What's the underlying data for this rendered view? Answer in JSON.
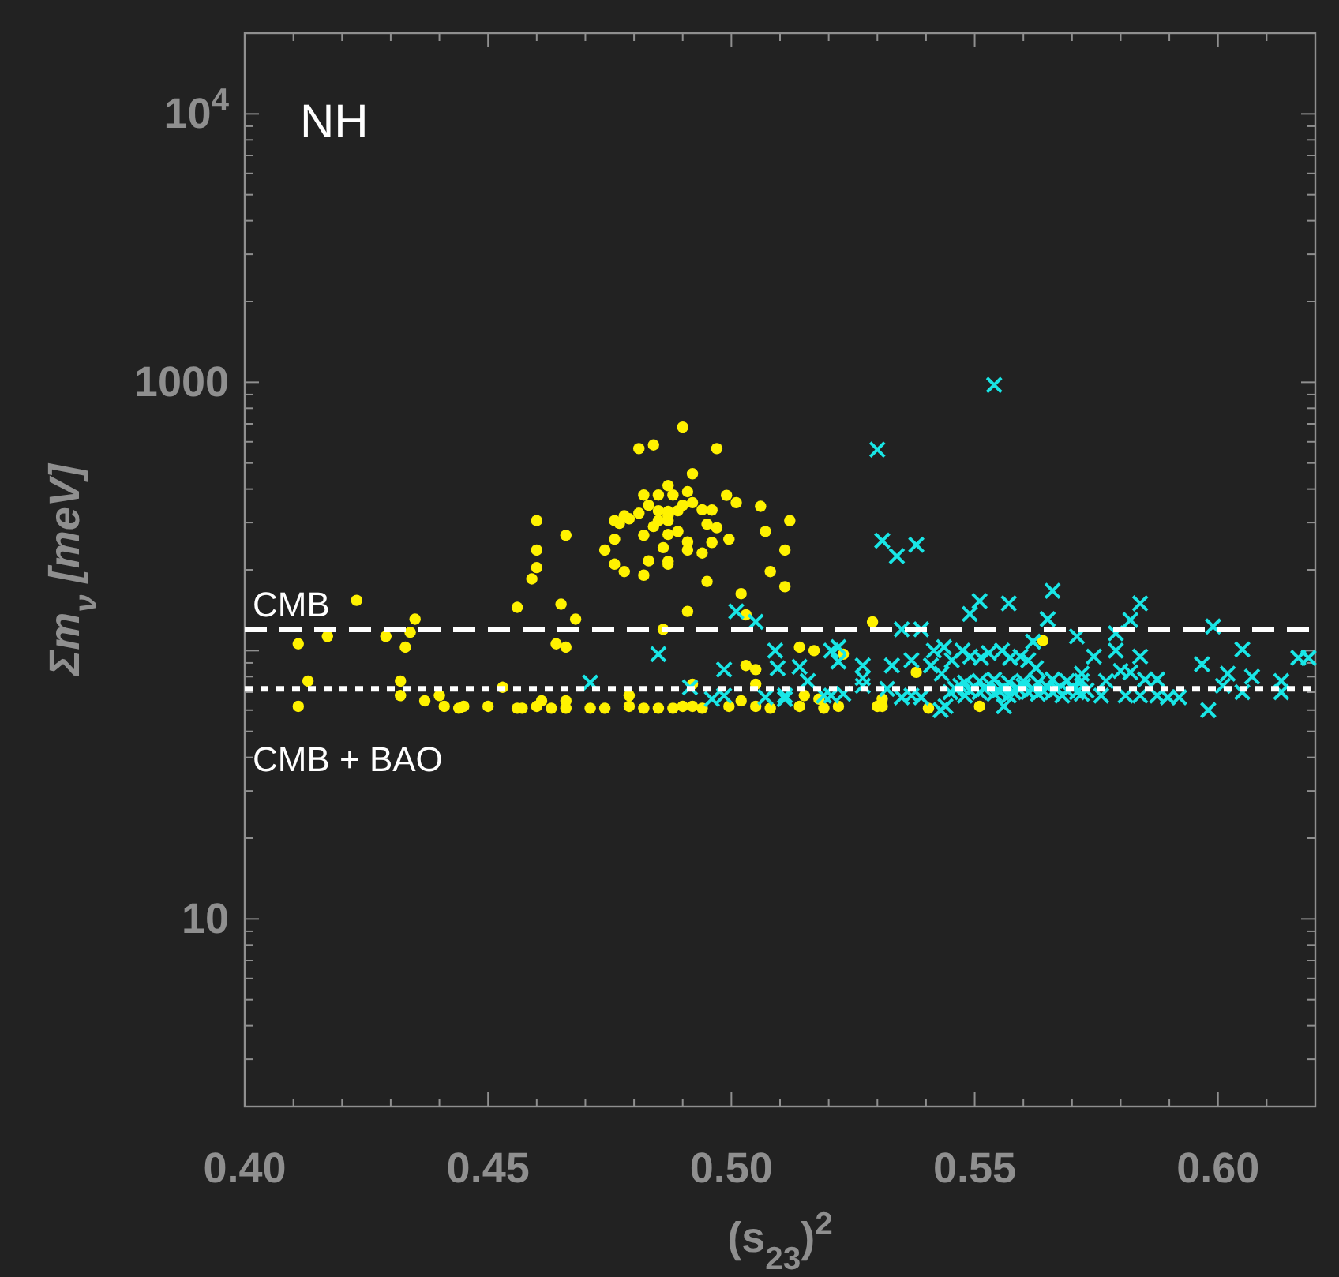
{
  "chart_data": {
    "type": "scatter",
    "xlabel": "(s$_{23}$)$^{2}$",
    "ylabel": "Σm$_{ν}$ [meV]",
    "annotations": [
      "NH"
    ],
    "log": "y",
    "grid": false,
    "xlim": [
      0.4,
      0.62
    ],
    "ylim": [
      2,
      20000
    ],
    "xticks": [
      {
        "value": 0.4,
        "label": "0.40"
      },
      {
        "value": 0.41,
        "label": null
      },
      {
        "value": 0.42,
        "label": null
      },
      {
        "value": 0.43,
        "label": null
      },
      {
        "value": 0.44,
        "label": null
      },
      0.45,
      {
        "value": 0.46,
        "label": null
      },
      {
        "value": 0.47,
        "label": null
      },
      {
        "value": 0.48,
        "label": null
      },
      {
        "value": 0.49,
        "label": null
      },
      {
        "value": 0.5,
        "label": "0.50"
      },
      {
        "value": 0.51,
        "label": null
      },
      {
        "value": 0.52,
        "label": null
      },
      {
        "value": 0.53,
        "label": null
      },
      {
        "value": 0.54,
        "label": null
      },
      0.55,
      {
        "value": 0.56,
        "label": null
      },
      {
        "value": 0.57,
        "label": null
      },
      {
        "value": 0.58,
        "label": null
      },
      {
        "value": 0.59,
        "label": null
      },
      {
        "value": 0.6,
        "label": "0.60"
      },
      {
        "value": 0.61,
        "label": null
      }
    ],
    "yticks": [
      {
        "value": 3,
        "label": null
      },
      {
        "value": 4,
        "label": null
      },
      {
        "value": 5,
        "label": null
      },
      {
        "value": 6,
        "label": null
      },
      {
        "value": 7,
        "label": null
      },
      {
        "value": 8,
        "label": null
      },
      {
        "value": 9,
        "label": null
      },
      10,
      {
        "value": 20,
        "label": null
      },
      {
        "value": 30,
        "label": null
      },
      {
        "value": 40,
        "label": null
      },
      {
        "value": 50,
        "label": null
      },
      {
        "value": 60,
        "label": null
      },
      {
        "value": 70,
        "label": null
      },
      {
        "value": 80,
        "label": null
      },
      {
        "value": 90,
        "label": null
      },
      {
        "value": 100,
        "label": null
      },
      {
        "value": 200,
        "label": null
      },
      {
        "value": 300,
        "label": null
      },
      {
        "value": 400,
        "label": null
      },
      {
        "value": 500,
        "label": null
      },
      {
        "value": 600,
        "label": null
      },
      {
        "value": 700,
        "label": null
      },
      {
        "value": 800,
        "label": null
      },
      {
        "value": 900,
        "label": null
      },
      1000,
      {
        "value": 2000,
        "label": null
      },
      {
        "value": 3000,
        "label": null
      },
      {
        "value": 4000,
        "label": null
      },
      {
        "value": 5000,
        "label": null
      },
      {
        "value": 6000,
        "label": null
      },
      {
        "value": 7000,
        "label": null
      },
      {
        "value": 8000,
        "label": null
      },
      {
        "value": 9000,
        "label": null
      },
      {
        "value": 10000,
        "label": "10$^{4}$"
      }
    ],
    "ref_lines": [
      {
        "axis": "y",
        "value": 120,
        "label": "CMB",
        "color": "#ffffff",
        "line_style": "dashed"
      },
      {
        "axis": "y",
        "value": 72,
        "label": "CMB + BAO",
        "color": "#ffffff",
        "line_style": "dotted"
      }
    ],
    "series": [
      {
        "color": "#fff200",
        "marker": "circle",
        "x": [
          0.423,
          0.411,
          0.411,
          0.413,
          0.417,
          0.429,
          0.433,
          0.434,
          0.435,
          0.432,
          0.432,
          0.437,
          0.44,
          0.441,
          0.444,
          0.445,
          0.45,
          0.453,
          0.456,
          0.457,
          0.46,
          0.461,
          0.463,
          0.466,
          0.466,
          0.464,
          0.466,
          0.465,
          0.468,
          0.456,
          0.459,
          0.46,
          0.46,
          0.46,
          0.466,
          0.471,
          0.474,
          0.479,
          0.479,
          0.482,
          0.485,
          0.488,
          0.49,
          0.492,
          0.494,
          0.486,
          0.491,
          0.492,
          0.495,
          0.502,
          0.503,
          0.4995,
          0.502,
          0.505,
          0.508,
          0.505,
          0.503,
          0.505,
          0.514,
          0.517,
          0.515,
          0.514,
          0.518,
          0.519,
          0.522,
          0.49,
          0.481,
          0.484,
          0.497,
          0.492,
          0.487,
          0.482,
          0.485,
          0.488,
          0.491,
          0.499,
          0.501,
          0.506,
          0.512,
          0.507,
          0.511,
          0.508,
          0.511,
          0.494,
          0.496,
          0.4995,
          0.497,
          0.495,
          0.496,
          0.494,
          0.476,
          0.476,
          0.474,
          0.476,
          0.478,
          0.482,
          0.483,
          0.487,
          0.487,
          0.486,
          0.482,
          0.484,
          0.487,
          0.489,
          0.491,
          0.491,
          0.478,
          0.481,
          0.483,
          0.485,
          0.487,
          0.489,
          0.49,
          0.492,
          0.477,
          0.479,
          0.487,
          0.485,
          0.487,
          0.523,
          0.529,
          0.53,
          0.531,
          0.531,
          0.538,
          0.5405,
          0.551,
          0.564
        ],
        "values": [
          154,
          106,
          62,
          77,
          113,
          113,
          103,
          117,
          131,
          77,
          68,
          65,
          68,
          62,
          61,
          62,
          62,
          73,
          61,
          61,
          62,
          65,
          61,
          61,
          65,
          106,
          103,
          149,
          131,
          145,
          185,
          204,
          237,
          305,
          269,
          61,
          61,
          68,
          62,
          61,
          61,
          61,
          62,
          62,
          61,
          120,
          140,
          75,
          181,
          163,
          136,
          62,
          65,
          62,
          61,
          75,
          88,
          85,
          103,
          100,
          68,
          62,
          66,
          61,
          62,
          681,
          566,
          584,
          566,
          456,
          412,
          380,
          380,
          380,
          391,
          379,
          356,
          345,
          305,
          278,
          237,
          197,
          173,
          231,
          253,
          260,
          287,
          296,
          334,
          335,
          305,
          260,
          237,
          210,
          197,
          191,
          216,
          210,
          215,
          242,
          269,
          290,
          271,
          278,
          254,
          237,
          318,
          325,
          348,
          332,
          318,
          332,
          348,
          356,
          298,
          310,
          330,
          305,
          305,
          97,
          128,
          62,
          62,
          66,
          83,
          61,
          62,
          109
        ]
      },
      {
        "color": "#19e6e6",
        "marker": "cross",
        "x": [
          0.501,
          0.505,
          0.485,
          0.471,
          0.4915,
          0.496,
          0.4985,
          0.4985,
          0.509,
          0.5095,
          0.514,
          0.5157,
          0.507,
          0.511,
          0.511,
          0.5205,
          0.5205,
          0.554,
          0.53,
          0.531,
          0.534,
          0.538,
          0.551,
          0.549,
          0.557,
          0.566,
          0.565,
          0.584,
          0.582,
          0.579,
          0.571,
          0.599,
          0.535,
          0.539,
          0.522,
          0.522,
          0.527,
          0.527,
          0.527,
          0.533,
          0.537,
          0.532,
          0.535,
          0.539,
          0.5416,
          0.5437,
          0.541,
          0.5432,
          0.5453,
          0.5475,
          0.5491,
          0.5513,
          0.5529,
          0.5556,
          0.5573,
          0.5594,
          0.561,
          0.5626,
          0.545,
          0.546,
          0.547,
          0.548,
          0.549,
          0.55,
          0.551,
          0.552,
          0.553,
          0.554,
          0.555,
          0.556,
          0.557,
          0.558,
          0.559,
          0.56,
          0.561,
          0.562,
          0.563,
          0.564,
          0.565,
          0.566,
          0.567,
          0.568,
          0.569,
          0.57,
          0.571,
          0.572,
          0.573,
          0.548,
          0.551,
          0.554,
          0.557,
          0.56,
          0.563,
          0.566,
          0.569,
          0.543,
          0.556,
          0.562,
          0.5745,
          0.579,
          0.584,
          0.58,
          0.582,
          0.572,
          0.572,
          0.577,
          0.576,
          0.581,
          0.584,
          0.585,
          0.5875,
          0.5875,
          0.5897,
          0.592,
          0.5967,
          0.602,
          0.601,
          0.598,
          0.605,
          0.607,
          0.605,
          0.613,
          0.613,
          0.6165,
          0.6186,
          0.519,
          0.523,
          0.537,
          0.544
        ],
        "values": [
          140,
          128,
          97,
          76,
          73,
          66,
          85,
          68,
          100,
          86,
          87,
          77,
          67,
          68,
          66,
          100,
          68,
          977,
          561,
          257,
          225,
          248,
          153,
          137,
          150,
          167,
          131,
          150,
          130,
          116,
          113,
          123,
          120,
          120,
          103,
          91,
          88,
          79,
          74,
          88,
          92,
          72,
          67,
          67,
          100,
          103,
          88,
          82,
          92,
          100,
          95,
          94,
          98,
          100,
          94,
          95,
          92,
          86,
          70,
          72,
          74,
          68,
          71,
          73,
          70,
          72,
          75,
          69,
          71,
          73,
          68,
          70,
          72,
          74,
          70,
          72,
          69,
          71,
          73,
          70,
          72,
          68,
          71,
          73,
          70,
          69,
          71,
          76,
          77,
          78,
          76,
          77,
          76,
          78,
          77,
          60,
          62,
          108,
          95,
          100,
          95,
          84,
          83,
          82,
          77,
          77,
          68,
          68,
          68,
          78,
          78,
          68,
          67,
          67,
          89,
          82,
          74,
          60,
          101,
          80,
          70,
          77,
          70,
          94,
          94,
          68,
          69,
          68,
          62
        ]
      }
    ]
  }
}
